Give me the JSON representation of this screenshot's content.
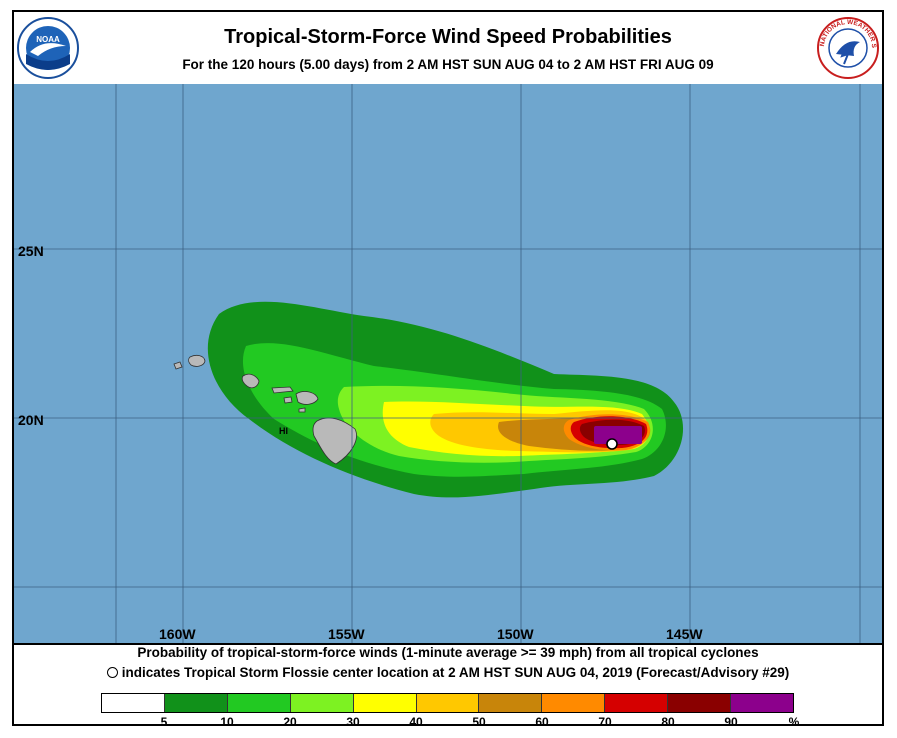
{
  "header": {
    "title": "Tropical-Storm-Force Wind Speed Probabilities",
    "subtitle": "For the 120 hours (5.00 days) from 2 AM HST SUN AUG 04 to 2 AM HST FRI AUG 09",
    "left_logo": "NOAA",
    "right_logo": "NATIONAL WEATHER SERVICE"
  },
  "map": {
    "ocean_color": "#6fa6ce",
    "longitude_labels": [
      "160W",
      "155W",
      "150W",
      "145W"
    ],
    "latitude_labels": [
      "25N",
      "20N"
    ],
    "state_label": "HI",
    "storm_marker_icon": "storm-center-circle"
  },
  "footer": {
    "caption_line1": "Probability of tropical-storm-force winds (1-minute average >= 39 mph) from all tropical cyclones",
    "caption_line2": "indicates Tropical Storm Flossie center location at 2 AM HST SUN AUG 04, 2019 (Forecast/Advisory #29)"
  },
  "legend": {
    "colors": [
      "#ffffff",
      "#11911a",
      "#22c922",
      "#7df222",
      "#ffff00",
      "#ffc800",
      "#c8850a",
      "#ff8a00",
      "#d50000",
      "#8a0000",
      "#8c008c"
    ],
    "ticks": [
      "5",
      "10",
      "20",
      "30",
      "40",
      "50",
      "60",
      "70",
      "80",
      "90",
      "%"
    ]
  }
}
